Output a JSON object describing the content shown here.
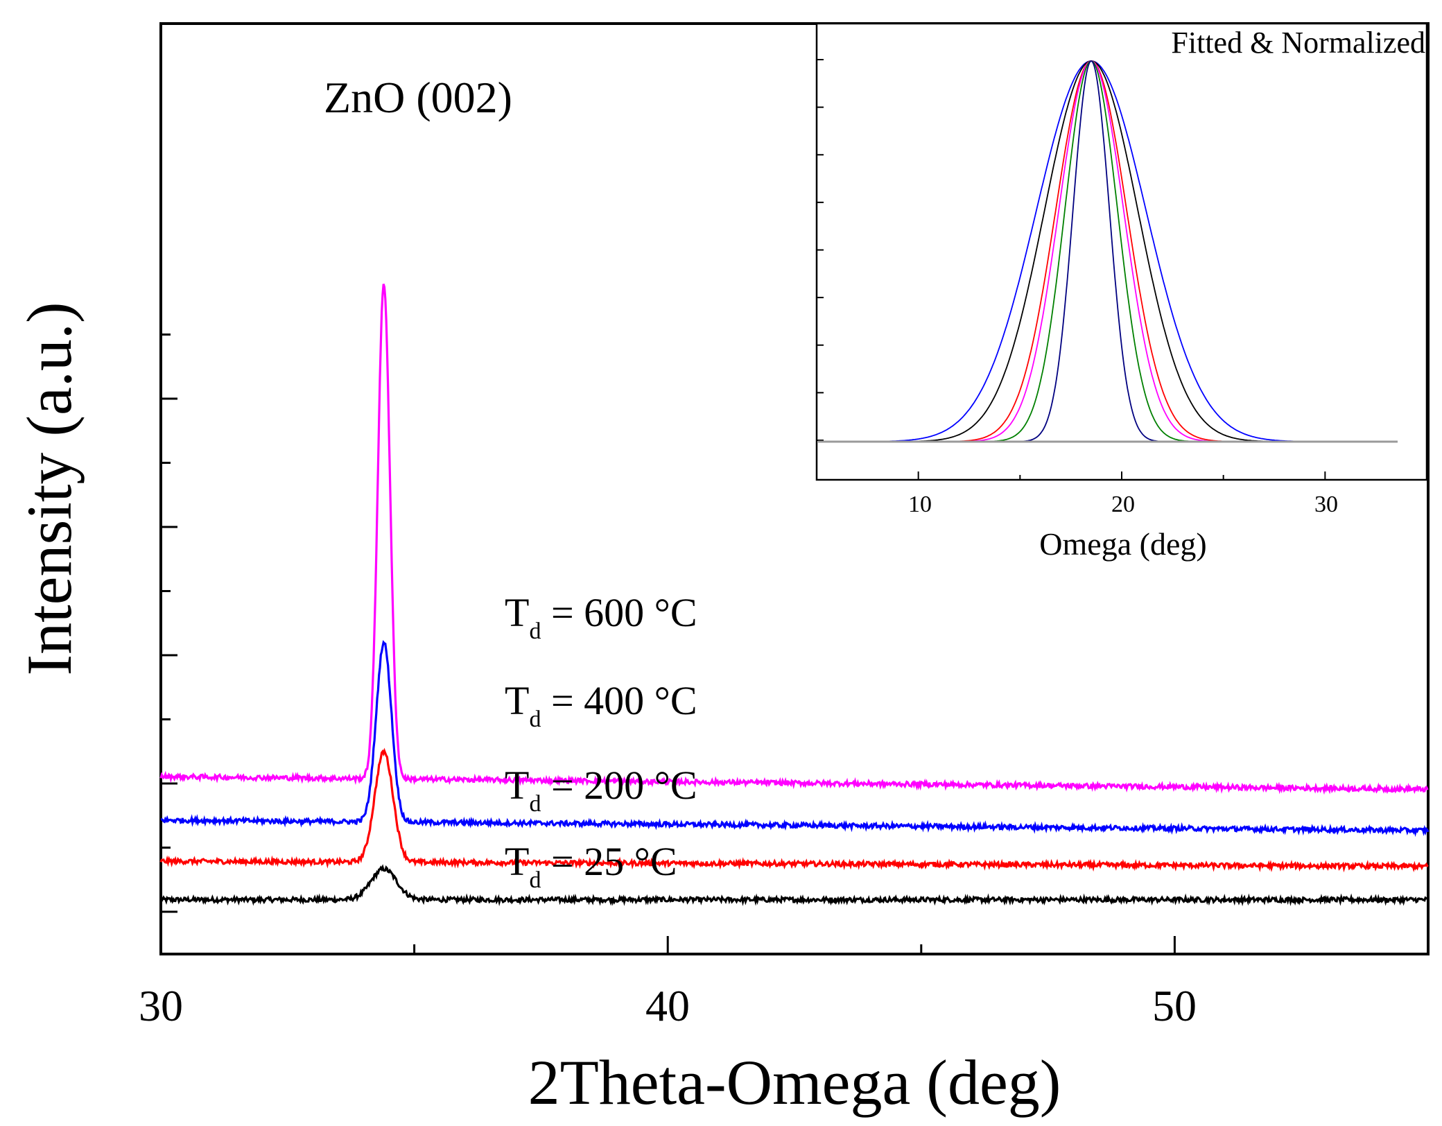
{
  "chart_data": [
    {
      "type": "line",
      "xlabel": "2Theta-Omega (deg)",
      "ylabel": "Intensity (a.u.)",
      "xlim": [
        30,
        55
      ],
      "x_ticks": [
        "30",
        "40",
        "50"
      ],
      "annotation": "ZnO (002)",
      "peak_position": 34.4,
      "series": [
        {
          "name": "25",
          "label_prefix": "T",
          "label_sub": "d",
          "label_value": "= 25 °C",
          "color": "#000000",
          "baseline": 0.02,
          "peak_height": 0.12,
          "peak_width": 0.25,
          "tail_drop": 0.0
        },
        {
          "name": "200",
          "label_prefix": "T",
          "label_sub": "d",
          "label_value": "= 200  °C",
          "color": "#ff0000",
          "baseline": 0.17,
          "peak_height": 0.43,
          "peak_width": 0.18,
          "tail_drop": 0.02
        },
        {
          "name": "400",
          "label_prefix": "T",
          "label_sub": "d",
          "label_value": "= 400  °C",
          "color": "#0000ff",
          "baseline": 0.33,
          "peak_height": 0.7,
          "peak_width": 0.15,
          "tail_drop": 0.04
        },
        {
          "name": "600",
          "label_prefix": "T",
          "label_sub": "d",
          "label_value": "= 600  °C",
          "color": "#ff00ff",
          "baseline": 0.5,
          "peak_height": 1.93,
          "peak_width": 0.12,
          "tail_drop": 0.05
        }
      ]
    },
    {
      "type": "line",
      "title": "Fitted & Normalized",
      "xlabel": "Omega (deg)",
      "xlim": [
        5,
        35
      ],
      "ylim": [
        0,
        1
      ],
      "x_ticks": [
        "10",
        "20",
        "30"
      ],
      "center": 18.5,
      "series": [
        {
          "name": "blue-wide",
          "color": "#0000ff",
          "sigma": 2.7
        },
        {
          "name": "black",
          "color": "#000000",
          "sigma": 2.3
        },
        {
          "name": "red",
          "color": "#ff0000",
          "sigma": 1.75
        },
        {
          "name": "magenta",
          "color": "#ff00ff",
          "sigma": 1.6
        },
        {
          "name": "green",
          "color": "#008000",
          "sigma": 1.3
        },
        {
          "name": "navy",
          "color": "#000080",
          "sigma": 0.9
        }
      ]
    }
  ]
}
